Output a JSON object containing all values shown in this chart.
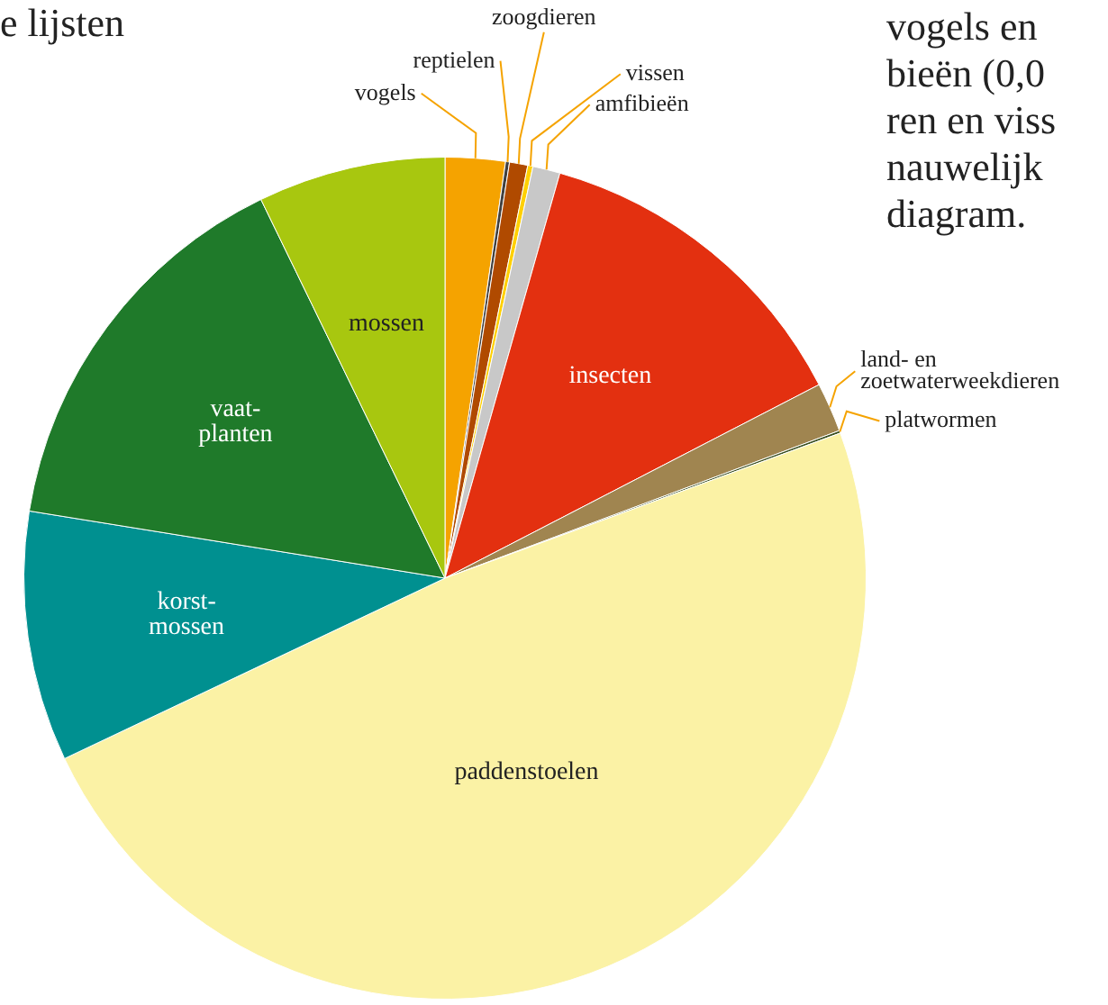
{
  "chart_data": {
    "type": "pie",
    "categories": [
      "vogels",
      "reptielen",
      "zoogdieren",
      "vissen",
      "amfibieën",
      "insecten",
      "land- en\nzoetwaterweekdieren",
      "platwormen",
      "paddenstoelen",
      "korst-\nmossen",
      "vaat-\nplanten",
      "mossen"
    ],
    "values": [
      2.3,
      0.15,
      0.7,
      0.2,
      1.05,
      13,
      1.9,
      0.1,
      48.55,
      9.6,
      15.25,
      7.2
    ],
    "colors": [
      "#f5a300",
      "#404040",
      "#b04a00",
      "#ffd000",
      "#c8c8c8",
      "#e33010",
      "#a08550",
      "#3a5020",
      "#fbf2a5",
      "#009090",
      "#1f7a2a",
      "#a8c70f"
    ],
    "annotations": [
      "e lijsten",
      "vogels en",
      "bieën (0,0",
      "ren en viss",
      "nauwelijk",
      "diagram."
    ],
    "legend": false
  }
}
